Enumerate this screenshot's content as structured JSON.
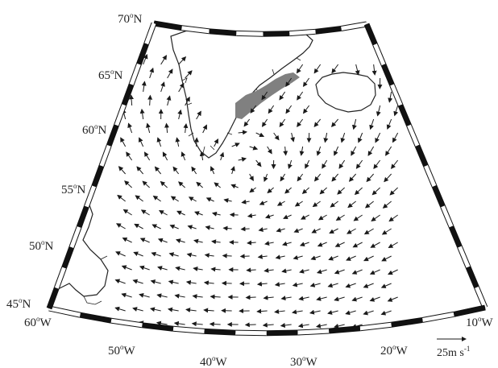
{
  "map": {
    "projection": "conic",
    "lat_labels": [
      {
        "deg": "70",
        "hemi": "N"
      },
      {
        "deg": "65",
        "hemi": "N"
      },
      {
        "deg": "60",
        "hemi": "N"
      },
      {
        "deg": "55",
        "hemi": "N"
      },
      {
        "deg": "50",
        "hemi": "N"
      },
      {
        "deg": "45",
        "hemi": "N"
      }
    ],
    "lon_labels": [
      {
        "deg": "60",
        "hemi": "W"
      },
      {
        "deg": "50",
        "hemi": "W"
      },
      {
        "deg": "40",
        "hemi": "W"
      },
      {
        "deg": "30",
        "hemi": "W"
      },
      {
        "deg": "20",
        "hemi": "W"
      },
      {
        "deg": "10",
        "hemi": "W"
      }
    ],
    "degree_symbol": "o",
    "reference_vector": {
      "value": "25",
      "unit_main": "m s",
      "unit_exp": "-1"
    },
    "wind_field": "surface wind vectors",
    "shaded_region": "SE Greenland tip-jet zone",
    "colors": {
      "frame_dark": "#111111",
      "frame_light": "#ffffff",
      "land_line": "#222222",
      "arrow": "#1a1a1a",
      "shading": "#808080"
    }
  }
}
